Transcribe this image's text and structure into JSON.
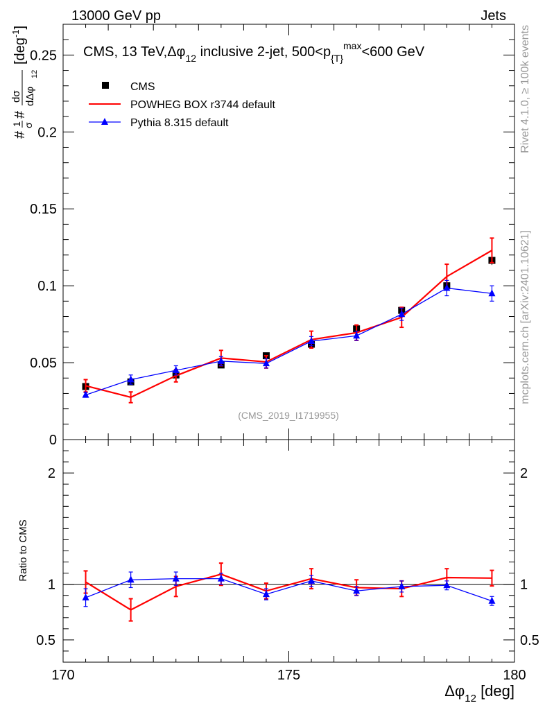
{
  "header": {
    "left": "13000 GeV pp",
    "right": "Jets"
  },
  "side_labels": {
    "rivet": "Rivet 4.1.0, ≥ 100k events",
    "mcplots": "mcplots.cern.ch [arXiv:2401.10621]"
  },
  "watermark": "(CMS_2019_I1719955)",
  "chart_data": {
    "type": "scatter",
    "title_parts": {
      "main": "CMS, 13 TeV,",
      "dphi": "Δφ",
      "sub12": "12",
      "rest": " inclusive 2-jet, 500<p",
      "subT": "{T}",
      "supmax": "max",
      "end": "<600 GeV"
    },
    "xlabel": {
      "main": "Δφ",
      "sub": "12",
      "unit": " [deg]"
    },
    "ylabel_main": {
      "hash": "#",
      "one": "1",
      "sigma": "σ",
      "hash2": "#",
      "dsigma": "dσ",
      "ddphi": "dΔφ",
      "sub": "12",
      "unit_open": "[deg",
      "unit_sup": "-1",
      "unit_close": "]"
    },
    "ylabel_ratio": "Ratio to CMS",
    "xlim": [
      170,
      180
    ],
    "ylim_main": [
      0,
      0.27
    ],
    "ylim_ratio": [
      0.3,
      2.3
    ],
    "x_ticks": [
      "170",
      "175",
      "180"
    ],
    "y_ticks_main": [
      "0",
      "0.05",
      "0.1",
      "0.15",
      "0.2",
      "0.25"
    ],
    "y_ticks_ratio": [
      "0.5",
      "1",
      "2"
    ],
    "bin_edges": [
      170,
      171,
      172,
      173,
      174,
      175,
      176,
      177,
      178,
      179,
      180
    ],
    "x": [
      170.5,
      171.5,
      172.5,
      173.5,
      174.5,
      175.5,
      176.5,
      177.5,
      178.5,
      179.5
    ],
    "colors": {
      "cms": "#000000",
      "powheg": "#ff0000",
      "pythia": "#0000ff"
    },
    "series": [
      {
        "name": "CMS",
        "style": "squares",
        "values": [
          0.0345,
          0.0375,
          0.042,
          0.0485,
          0.0545,
          0.062,
          0.072,
          0.084,
          0.1,
          0.1165
        ],
        "errors": [
          0.0015,
          0.0015,
          0.0015,
          0.0015,
          0.0015,
          0.0018,
          0.002,
          0.002,
          0.0025,
          0.003
        ]
      },
      {
        "name": "POWHEG BOX r3744 default",
        "style": "line",
        "values": [
          0.035,
          0.0275,
          0.0415,
          0.053,
          0.0505,
          0.065,
          0.0695,
          0.0795,
          0.106,
          0.123
        ],
        "errors": [
          0.004,
          0.0035,
          0.004,
          0.005,
          0.004,
          0.0055,
          0.005,
          0.0065,
          0.008,
          0.008
        ]
      },
      {
        "name": "Pythia 8.315 default",
        "style": "triangles",
        "values": [
          0.029,
          0.039,
          0.045,
          0.051,
          0.0495,
          0.064,
          0.0675,
          0.0815,
          0.0985,
          0.095
        ],
        "errors": [
          0.0015,
          0.003,
          0.003,
          0.003,
          0.003,
          0.003,
          0.003,
          0.004,
          0.005,
          0.005
        ]
      }
    ],
    "ratio_series": [
      {
        "name": "POWHEG BOX r3744 default",
        "values": [
          1.02,
          0.77,
          0.98,
          1.09,
          0.94,
          1.05,
          0.97,
          0.96,
          1.06,
          1.055
        ],
        "errors": [
          0.1,
          0.1,
          0.09,
          0.1,
          0.07,
          0.09,
          0.07,
          0.07,
          0.08,
          0.07
        ]
      },
      {
        "name": "Pythia 8.315 default",
        "values": [
          0.88,
          1.04,
          1.05,
          1.05,
          0.91,
          1.03,
          0.94,
          0.98,
          0.99,
          0.85
        ],
        "errors": [
          0.08,
          0.07,
          0.06,
          0.05,
          0.05,
          0.05,
          0.04,
          0.05,
          0.04,
          0.04
        ]
      }
    ]
  }
}
